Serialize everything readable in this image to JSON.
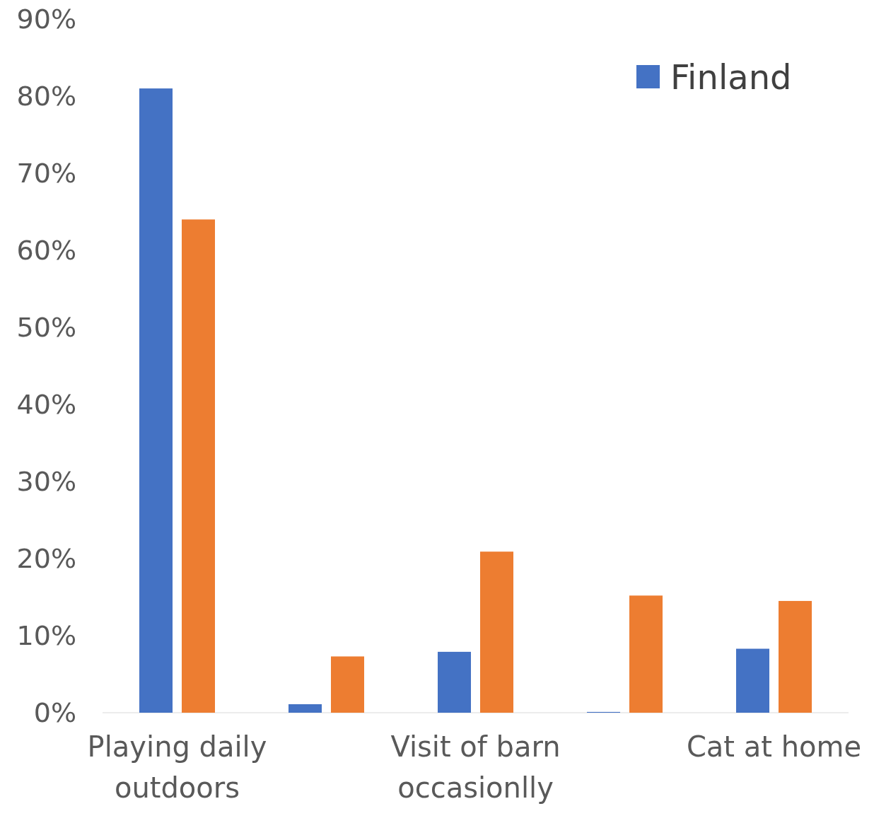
{
  "chart_data": {
    "type": "bar",
    "categories": [
      "Playing daily outdoors",
      null,
      "Visit of barn occasionlly",
      null,
      "Cat at home"
    ],
    "series": [
      {
        "name": "Finland",
        "color": "#4472c4",
        "values": [
          81,
          1.1,
          7.9,
          0.1,
          8.3
        ]
      },
      {
        "color": "#ed7d31",
        "values": [
          64,
          7.3,
          20.9,
          15.2,
          14.5
        ]
      }
    ],
    "ylim": [
      0,
      90
    ],
    "yticks": [
      {
        "value": 0,
        "label": "0%"
      },
      {
        "value": 10,
        "label": "10%"
      },
      {
        "value": 20,
        "label": "20%"
      },
      {
        "value": 30,
        "label": "30%"
      },
      {
        "value": 40,
        "label": "40%"
      },
      {
        "value": 50,
        "label": "50%"
      },
      {
        "value": 60,
        "label": "60%"
      },
      {
        "value": 70,
        "label": "70%"
      },
      {
        "value": 80,
        "label": "80%"
      },
      {
        "value": 90,
        "label": "90%"
      }
    ],
    "grid": false,
    "legend": "top right"
  }
}
